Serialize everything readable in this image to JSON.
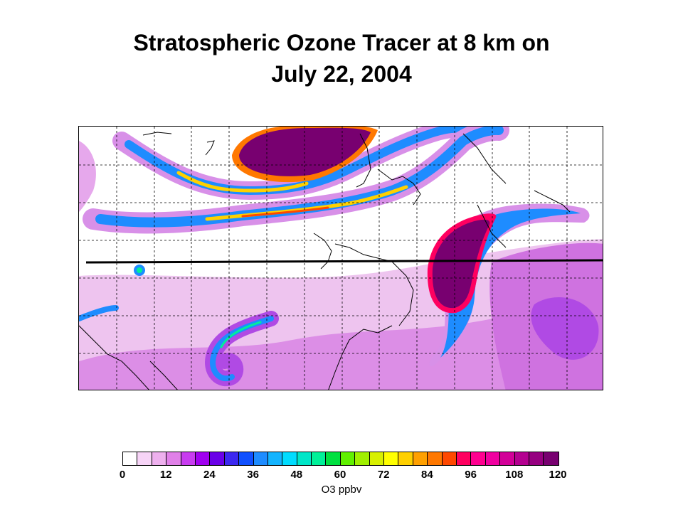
{
  "title_line1": "Stratospheric Ozone Tracer at 8 km on",
  "title_line2": "July 22, 2004",
  "colorbar": {
    "label": "O3 ppbv",
    "min": 0,
    "max": 120,
    "tick_labels": [
      "0",
      "12",
      "24",
      "36",
      "48",
      "60",
      "72",
      "84",
      "96",
      "108",
      "120"
    ],
    "colors": [
      "#ffffff",
      "#f7d4f7",
      "#eeb0ee",
      "#e080e8",
      "#c83cf0",
      "#a000f0",
      "#6a00e8",
      "#3c28f0",
      "#1050ff",
      "#1e8cff",
      "#14b4ff",
      "#00dcff",
      "#00e6c8",
      "#00f098",
      "#00e040",
      "#60f000",
      "#a0f000",
      "#d8f000",
      "#ffff00",
      "#ffd000",
      "#ffa000",
      "#ff7800",
      "#ff4800",
      "#ff0060",
      "#ff0090",
      "#f000a0",
      "#d20098",
      "#b40090",
      "#960080",
      "#780070"
    ]
  },
  "map": {
    "gridline_color": "#000000",
    "plume_core_color": "#780070",
    "background_color": "#e9b8ea"
  }
}
